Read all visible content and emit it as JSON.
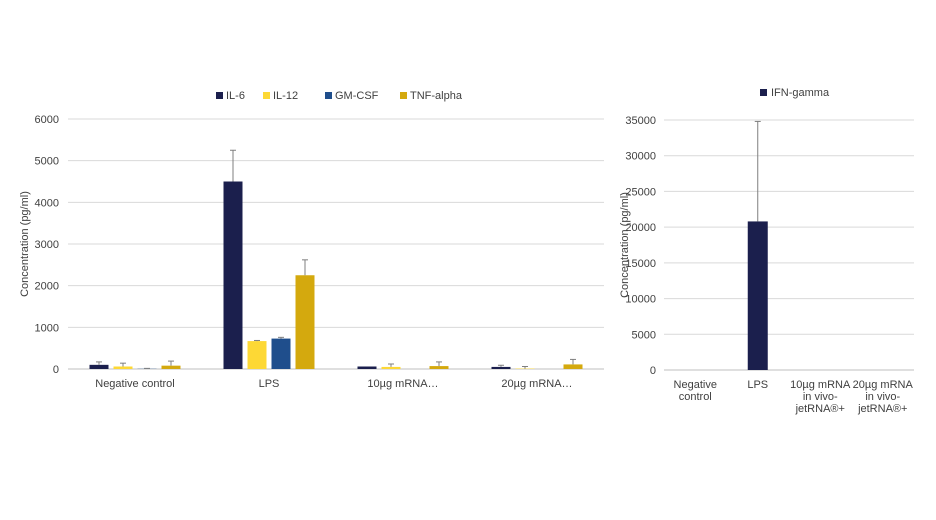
{
  "chart_data": [
    {
      "type": "bar",
      "title": "",
      "xlabel": "",
      "ylabel": "Concentration (pg/ml)",
      "ylim": [
        0,
        6000
      ],
      "yticks": [
        0,
        1000,
        2000,
        3000,
        4000,
        5000,
        6000
      ],
      "grid": true,
      "legend_position": "top",
      "categories": [
        "Negative control",
        "LPS",
        "10µg mRNA…",
        "20µg mRNA…"
      ],
      "series": [
        {
          "name": "IL-6",
          "color": "#1b1f4d",
          "values": [
            100,
            4500,
            60,
            50
          ],
          "errors": [
            70,
            750,
            0,
            40
          ]
        },
        {
          "name": "IL-12",
          "color": "#fdd835",
          "values": [
            60,
            670,
            50,
            10
          ],
          "errors": [
            80,
            15,
            70,
            50
          ]
        },
        {
          "name": "GM-CSF",
          "color": "#1f4e8c",
          "values": [
            5,
            730,
            0,
            0
          ],
          "errors": [
            10,
            30,
            0,
            0
          ]
        },
        {
          "name": "TNF-alpha",
          "color": "#d4a90e",
          "values": [
            80,
            2250,
            70,
            110
          ],
          "errors": [
            110,
            370,
            100,
            120
          ]
        }
      ]
    },
    {
      "type": "bar",
      "title": "",
      "xlabel": "",
      "ylabel": "Concentration (pg/ml)",
      "ylim": [
        0,
        35000
      ],
      "yticks": [
        0,
        5000,
        10000,
        15000,
        20000,
        25000,
        30000,
        35000
      ],
      "grid": true,
      "legend_position": "top",
      "categories": [
        [
          "Negative",
          "control"
        ],
        [
          "LPS"
        ],
        [
          "10µg mRNA",
          "in vivo-",
          "jetRNA®+"
        ],
        [
          "20µg mRNA",
          "in vivo-",
          "jetRNA®+"
        ]
      ],
      "series": [
        {
          "name": "IFN-gamma",
          "color": "#1b1f4d",
          "values": [
            0,
            20800,
            0,
            0
          ],
          "errors": [
            0,
            14000,
            0,
            0
          ]
        }
      ]
    }
  ]
}
